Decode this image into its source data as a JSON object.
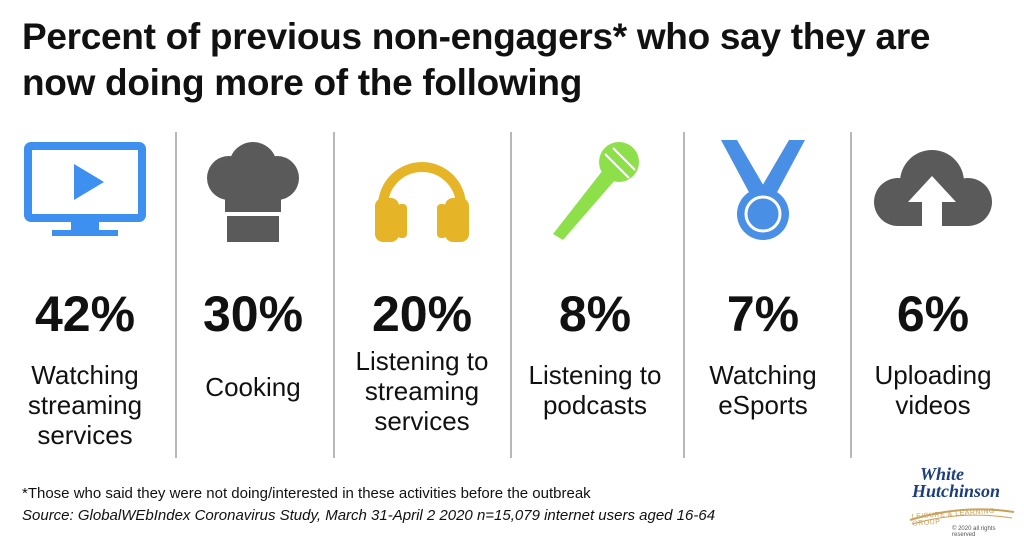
{
  "title": "Percent of previous non-engagers* who say they are now doing more of the following",
  "chart_data": {
    "type": "bar",
    "title": "Percent of previous non-engagers* who say they are now doing more of the following",
    "categories": [
      "Watching streaming services",
      "Cooking",
      "Listening to streaming services",
      "Listening to podcasts",
      "Watching eSports",
      "Uploading videos"
    ],
    "values": [
      42,
      30,
      20,
      8,
      7,
      6
    ],
    "value_labels": [
      "42%",
      "30%",
      "20%",
      "8%",
      "7%",
      "6%"
    ],
    "unit": "%"
  },
  "items": [
    {
      "icon": "tv-play-icon",
      "percent": "42%",
      "label": "Watching\nstreaming\nservices",
      "color": "#3d8ff0"
    },
    {
      "icon": "chef-hat-icon",
      "percent": "30%",
      "label": "Cooking",
      "color": "#5a5a5a"
    },
    {
      "icon": "headphones-icon",
      "percent": "20%",
      "label": "Listening to\nstreaming\nservices",
      "color": "#e6b527"
    },
    {
      "icon": "microphone-icon",
      "percent": "8%",
      "label": "Listening to\npodcasts",
      "color": "#8ee04a"
    },
    {
      "icon": "medal-icon",
      "percent": "7%",
      "label": "Watching\neSports",
      "color": "#4a8fe6"
    },
    {
      "icon": "cloud-upload-icon",
      "percent": "6%",
      "label": "Uploading\nvideos",
      "color": "#5a5a5a"
    }
  ],
  "footnote": "*Those who said they were not doing/interested in these activities before the outbreak",
  "source": "Source: GlobalWEbIndex Coronavirus Study, March 31-April 2 2020 n=15,079 internet users aged 16-64",
  "logo": {
    "line1": "White",
    "line2": "Hutchinson",
    "tagline": "LEISURE & LEARNING GROUP",
    "copyright": "© 2020 all rights reserved"
  }
}
